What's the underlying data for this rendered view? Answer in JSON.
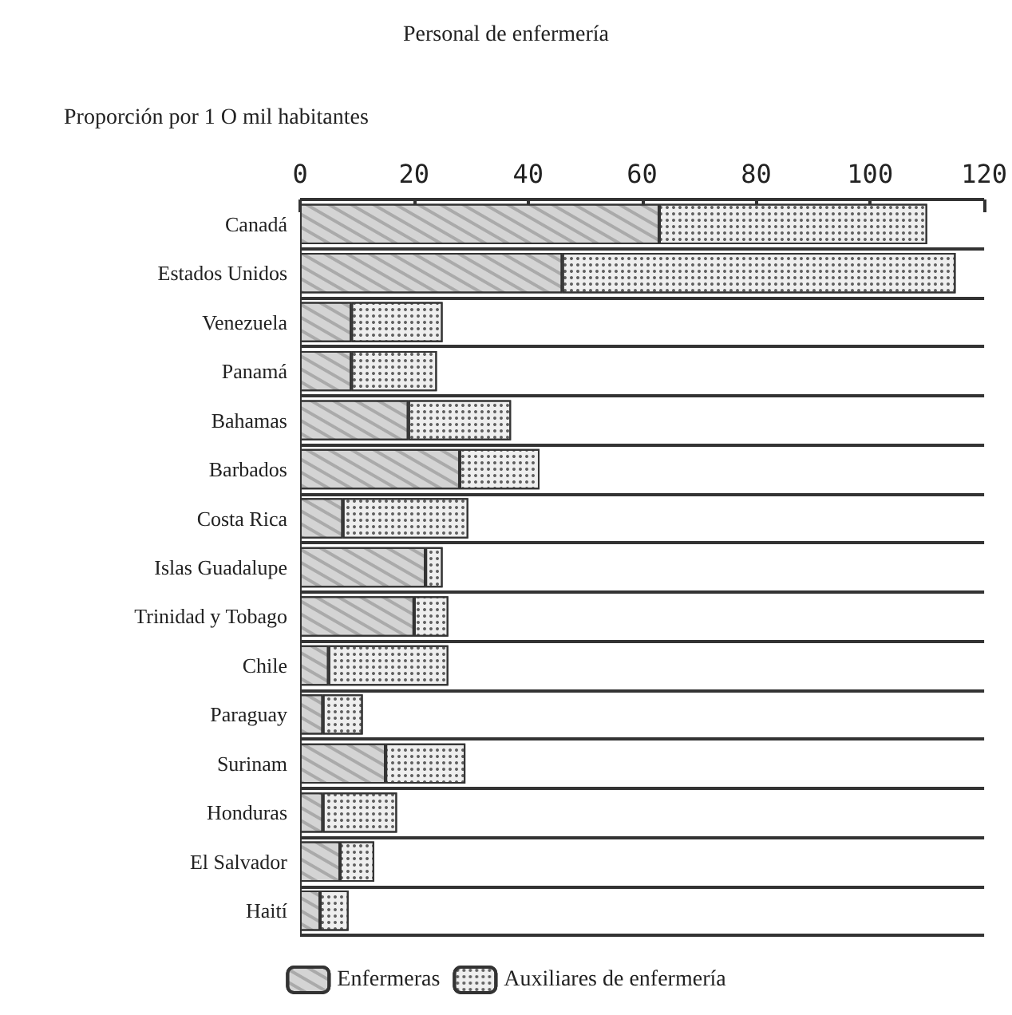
{
  "chart_data": {
    "type": "bar",
    "orientation": "horizontal",
    "stacked": true,
    "title": "Personal de enfermería",
    "subtitle": "Proporción por 1 O mil habitantes",
    "categories": [
      "Canadá",
      "Estados Unidos",
      "Venezuela",
      "Panamá",
      "Bahamas",
      "Barbados",
      "Costa Rica",
      "Islas Guadalupe",
      "Trinidad y Tobago",
      "Chile",
      "Paraguay",
      "Surinam",
      "Honduras",
      "El Salvador",
      "Haití"
    ],
    "series": [
      {
        "name": "Enfermeras",
        "color": "#d4d4d4",
        "values": [
          63,
          46,
          9,
          9,
          19,
          28,
          7.5,
          22,
          20,
          5,
          4,
          15,
          4,
          7,
          3.5
        ]
      },
      {
        "name": "Auxiliares de enfermería",
        "color": "#eeeeee",
        "values": [
          47,
          69,
          16,
          15,
          18,
          14,
          22,
          3,
          6,
          21,
          7,
          14,
          13,
          6,
          5
        ]
      }
    ],
    "xlim": [
      0,
      120
    ],
    "xticks": [
      0,
      20,
      40,
      60,
      80,
      100,
      120
    ],
    "grid": "y",
    "legend": "bottom"
  }
}
